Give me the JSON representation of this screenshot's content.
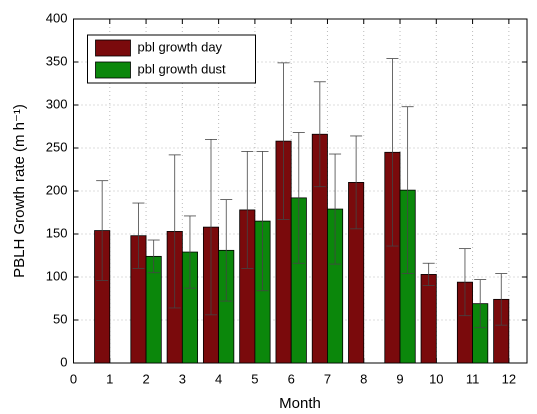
{
  "chart_data": {
    "type": "bar",
    "x_label": "Month",
    "y_label": "PBLH Growth rate (m h⁻¹)",
    "categories": [
      1,
      2,
      3,
      4,
      5,
      6,
      7,
      8,
      9,
      10,
      11,
      12
    ],
    "series": [
      {
        "name": "pbl growth day",
        "color": "#7a0a0c",
        "values": [
          154,
          148,
          153,
          158,
          178,
          258,
          266,
          210,
          245,
          103,
          94,
          74
        ],
        "errors": [
          58,
          38,
          89,
          102,
          68,
          91,
          61,
          54,
          109,
          13,
          39,
          30
        ]
      },
      {
        "name": "pbl growth dust",
        "color": "#0b870b",
        "values": [
          null,
          124,
          129,
          131,
          165,
          192,
          179,
          null,
          201,
          null,
          69,
          null
        ],
        "errors": [
          null,
          19,
          42,
          59,
          81,
          76,
          64,
          null,
          97,
          null,
          28,
          null
        ]
      }
    ],
    "xlim": [
      0,
      12.5
    ],
    "xticks": [
      0,
      1,
      2,
      3,
      4,
      5,
      6,
      7,
      8,
      9,
      10,
      11,
      12
    ],
    "ylim": [
      0,
      400
    ],
    "yticks": [
      0,
      50,
      100,
      150,
      200,
      250,
      300,
      350,
      400
    ],
    "grid": true,
    "legend": "upper left"
  }
}
